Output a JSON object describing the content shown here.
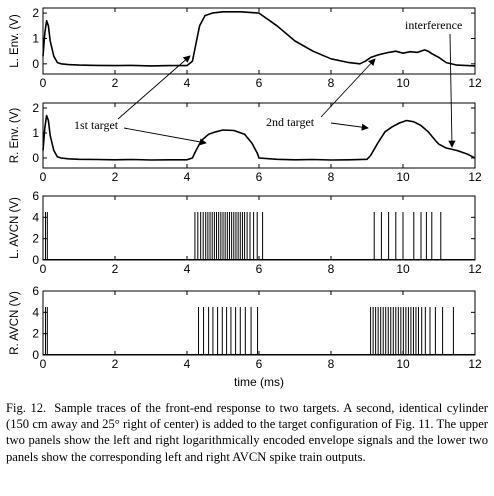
{
  "chart_data": {
    "xlabel": "time (ms)",
    "xlim": [
      0,
      12
    ],
    "xticks": [
      "0",
      "2",
      "4",
      "6",
      "8",
      "10",
      "12"
    ],
    "panels": [
      {
        "type": "line",
        "ylabel": "L. Env. (V)",
        "ylim": [
          -0.4,
          2.2
        ],
        "yticks": [
          0,
          1,
          2
        ],
        "series": [
          {
            "name": "left envelope",
            "x": [
              0,
              0.05,
              0.1,
              0.15,
              0.2,
              0.3,
              0.4,
              0.5,
              0.7,
              1.0,
              1.5,
              2.0,
              2.5,
              3.0,
              3.5,
              4.0,
              4.15,
              4.25,
              4.35,
              4.5,
              4.7,
              5.0,
              5.5,
              6.0,
              6.5,
              7.0,
              7.5,
              8.0,
              8.5,
              8.8,
              8.95,
              9.1,
              9.3,
              9.6,
              9.8,
              10.0,
              10.2,
              10.4,
              10.6,
              10.7,
              10.8,
              11.0,
              11.2,
              11.5,
              11.8,
              12.0
            ],
            "y": [
              0.3,
              1.2,
              1.7,
              1.5,
              0.9,
              0.3,
              0.05,
              0,
              -0.03,
              -0.05,
              -0.06,
              -0.07,
              -0.06,
              -0.08,
              -0.07,
              -0.07,
              0.1,
              0.8,
              1.5,
              1.9,
              2.0,
              2.05,
              2.05,
              2.0,
              1.5,
              0.9,
              0.5,
              0.2,
              0.05,
              0,
              0.1,
              0.25,
              0.35,
              0.45,
              0.5,
              0.42,
              0.48,
              0.45,
              0.55,
              0.5,
              0.4,
              0.25,
              0.05,
              -0.05,
              -0.07,
              -0.08
            ]
          }
        ]
      },
      {
        "type": "line",
        "ylabel": "R. Env. (V)",
        "ylim": [
          -0.4,
          2.2
        ],
        "yticks": [
          0,
          1,
          2
        ],
        "series": [
          {
            "name": "right envelope",
            "x": [
              0,
              0.05,
              0.1,
              0.15,
              0.2,
              0.3,
              0.4,
              0.5,
              0.7,
              1.0,
              1.5,
              2.0,
              2.5,
              3.0,
              3.5,
              4.0,
              4.15,
              4.25,
              4.4,
              4.6,
              4.8,
              5.0,
              5.3,
              5.6,
              5.8,
              5.95,
              6.0,
              6.5,
              7.0,
              7.5,
              8.0,
              8.5,
              9.0,
              9.1,
              9.3,
              9.5,
              9.7,
              9.9,
              10.1,
              10.3,
              10.5,
              10.7,
              10.9,
              11.0,
              11.2,
              11.5,
              11.8,
              12.0
            ],
            "y": [
              0.3,
              1.2,
              1.7,
              1.5,
              0.9,
              0.3,
              0.05,
              0,
              -0.03,
              -0.05,
              -0.06,
              -0.07,
              -0.06,
              -0.08,
              -0.07,
              -0.07,
              0,
              0.3,
              0.7,
              0.95,
              1.05,
              1.12,
              1.1,
              0.95,
              0.6,
              0.2,
              0,
              -0.05,
              -0.07,
              -0.06,
              -0.08,
              -0.07,
              -0.05,
              0.1,
              0.6,
              1.05,
              1.25,
              1.4,
              1.5,
              1.45,
              1.3,
              1.05,
              0.7,
              0.55,
              0.4,
              0.3,
              0.15,
              0
            ]
          }
        ]
      },
      {
        "type": "spike-train",
        "ylabel": "L. AVCN (V)",
        "ylim": [
          0,
          6
        ],
        "yticks": [
          0,
          2,
          4,
          6
        ],
        "spike_height": 4.5,
        "spike_times": [
          0.07,
          0.12,
          4.22,
          4.3,
          4.38,
          4.45,
          4.52,
          4.58,
          4.64,
          4.7,
          4.76,
          4.82,
          4.88,
          4.94,
          5.0,
          5.06,
          5.12,
          5.18,
          5.24,
          5.3,
          5.36,
          5.42,
          5.48,
          5.54,
          5.6,
          5.67,
          5.75,
          5.85,
          5.95,
          6.1,
          9.2,
          9.4,
          9.6,
          9.8,
          10.0,
          10.3,
          10.5,
          10.65,
          10.8,
          11.05
        ]
      },
      {
        "type": "spike-train",
        "ylabel": "R. AVCN (V)",
        "ylim": [
          0,
          6
        ],
        "yticks": [
          0,
          2,
          4,
          6
        ],
        "spike_height": 4.5,
        "spike_times": [
          0.07,
          0.12,
          4.32,
          4.46,
          4.6,
          4.72,
          4.85,
          4.98,
          5.1,
          5.22,
          5.35,
          5.48,
          5.62,
          5.78,
          5.96,
          9.1,
          9.17,
          9.24,
          9.31,
          9.38,
          9.45,
          9.52,
          9.59,
          9.66,
          9.73,
          9.8,
          9.87,
          9.94,
          10.01,
          10.08,
          10.15,
          10.22,
          10.29,
          10.36,
          10.43,
          10.52,
          10.62,
          10.75,
          10.9,
          11.1,
          11.4
        ]
      }
    ],
    "annotations": [
      {
        "text": "interference"
      },
      {
        "text": "1st target"
      },
      {
        "text": "2nd target"
      }
    ]
  },
  "caption": {
    "label": "Fig. 12.",
    "text": "Sample traces of the front-end response to two targets. A second, identical cylinder (150 cm away and 25° right of center) is added to the target configuration of Fig. 11. The upper two panels show the left and right logarithmically encoded envelope signals and the lower two panels show the corresponding left and right AVCN spike train outputs."
  }
}
